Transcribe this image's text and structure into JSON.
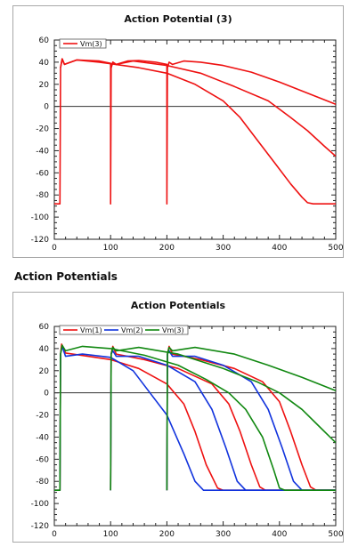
{
  "section_heading": "Action Potentials",
  "chart_data": [
    {
      "type": "line",
      "title": "Action Potential (3)",
      "xlabel": "",
      "ylabel": "",
      "xlim": [
        0,
        500
      ],
      "ylim": [
        -120,
        60
      ],
      "xticks": [
        0,
        100,
        200,
        300,
        400,
        500
      ],
      "yticks": [
        60,
        40,
        20,
        0,
        -20,
        -40,
        -60,
        -80,
        -100,
        -120
      ],
      "zero_line": true,
      "legend_position": "top-left",
      "series": [
        {
          "name": "Vm(3)",
          "color": "#ee1111",
          "points": [
            [
              0,
              -88
            ],
            [
              10,
              -88
            ],
            [
              11,
              35
            ],
            [
              14,
              43
            ],
            [
              18,
              38
            ],
            [
              40,
              42
            ],
            [
              80,
              41
            ],
            [
              100,
              39
            ],
            [
              100,
              -88
            ],
            [
              100,
              -88
            ],
            [
              101,
              35
            ],
            [
              104,
              40
            ],
            [
              110,
              38
            ],
            [
              130,
              41
            ],
            [
              150,
              41.5
            ],
            [
              180,
              40
            ],
            [
              200,
              38
            ],
            [
              200,
              -88
            ],
            [
              200,
              -88
            ],
            [
              201,
              35
            ],
            [
              204,
              40
            ],
            [
              210,
              38
            ],
            [
              230,
              41
            ],
            [
              260,
              40
            ],
            [
              300,
              37
            ],
            [
              350,
              31
            ],
            [
              400,
              22
            ],
            [
              450,
              12
            ],
            [
              480,
              6
            ],
            [
              500,
              2
            ]
          ]
        },
        {
          "name": "",
          "color": "#ee1111",
          "points": [
            [
              11,
              35
            ],
            [
              14,
              43
            ],
            [
              18,
              38
            ],
            [
              40,
              42
            ],
            [
              80,
              40
            ],
            [
              150,
              35
            ],
            [
              200,
              30
            ],
            [
              250,
              20
            ],
            [
              300,
              5
            ],
            [
              330,
              -10
            ],
            [
              360,
              -30
            ],
            [
              390,
              -50
            ],
            [
              420,
              -70
            ],
            [
              440,
              -82
            ],
            [
              450,
              -87
            ],
            [
              460,
              -88
            ],
            [
              500,
              -88
            ]
          ]
        },
        {
          "name": "",
          "color": "#ee1111",
          "points": [
            [
              101,
              35
            ],
            [
              104,
              40
            ],
            [
              110,
              38
            ],
            [
              140,
              41
            ],
            [
              200,
              37
            ],
            [
              260,
              30
            ],
            [
              320,
              18
            ],
            [
              380,
              5
            ],
            [
              420,
              -10
            ],
            [
              450,
              -22
            ],
            [
              480,
              -36
            ],
            [
              500,
              -45
            ]
          ]
        }
      ]
    },
    {
      "type": "line",
      "title": "Action Potentials",
      "xlabel": "",
      "ylabel": "",
      "xlim": [
        0,
        500
      ],
      "ylim": [
        -120,
        60
      ],
      "xticks": [
        0,
        100,
        200,
        300,
        400,
        500
      ],
      "yticks": [
        60,
        40,
        20,
        0,
        -20,
        -40,
        -60,
        -80,
        -100,
        -120
      ],
      "zero_line": true,
      "legend_position": "top-left",
      "legend": [
        "Vm(1)",
        "Vm(2)",
        "Vm(3)"
      ],
      "series": [
        {
          "name": "Vm(1)",
          "color": "#ee1111",
          "points": [
            [
              0,
              -88
            ],
            [
              10,
              -88
            ],
            [
              11,
              35
            ],
            [
              13,
              44
            ],
            [
              20,
              36
            ],
            [
              60,
              33
            ],
            [
              100,
              30
            ],
            [
              150,
              22
            ],
            [
              200,
              8
            ],
            [
              230,
              -10
            ],
            [
              250,
              -35
            ],
            [
              270,
              -65
            ],
            [
              290,
              -86
            ],
            [
              300,
              -88
            ],
            [
              500,
              -88
            ]
          ]
        },
        {
          "name": "",
          "color": "#ee1111",
          "points": [
            [
              100,
              -88
            ],
            [
              101,
              35
            ],
            [
              104,
              42
            ],
            [
              110,
              35
            ],
            [
              160,
              30
            ],
            [
              220,
              22
            ],
            [
              280,
              8
            ],
            [
              310,
              -10
            ],
            [
              330,
              -35
            ],
            [
              350,
              -65
            ],
            [
              365,
              -85
            ],
            [
              375,
              -88
            ],
            [
              500,
              -88
            ]
          ]
        },
        {
          "name": "",
          "color": "#ee1111",
          "points": [
            [
              200,
              -88
            ],
            [
              201,
              35
            ],
            [
              204,
              42
            ],
            [
              210,
              35
            ],
            [
              260,
              30
            ],
            [
              320,
              22
            ],
            [
              370,
              10
            ],
            [
              400,
              -8
            ],
            [
              420,
              -35
            ],
            [
              440,
              -65
            ],
            [
              455,
              -85
            ],
            [
              465,
              -88
            ],
            [
              500,
              -88
            ]
          ]
        },
        {
          "name": "Vm(2)",
          "color": "#1133dd",
          "points": [
            [
              0,
              -88
            ],
            [
              10,
              -88
            ],
            [
              11,
              35
            ],
            [
              14,
              42
            ],
            [
              20,
              33
            ],
            [
              50,
              35
            ],
            [
              100,
              32
            ],
            [
              140,
              20
            ],
            [
              170,
              0
            ],
            [
              200,
              -20
            ],
            [
              230,
              -55
            ],
            [
              250,
              -80
            ],
            [
              265,
              -88
            ],
            [
              500,
              -88
            ]
          ]
        },
        {
          "name": "",
          "color": "#1133dd",
          "points": [
            [
              100,
              -88
            ],
            [
              101,
              35
            ],
            [
              104,
              38
            ],
            [
              110,
              33
            ],
            [
              150,
              33
            ],
            [
              200,
              25
            ],
            [
              250,
              10
            ],
            [
              280,
              -15
            ],
            [
              305,
              -50
            ],
            [
              325,
              -80
            ],
            [
              340,
              -88
            ],
            [
              500,
              -88
            ]
          ]
        },
        {
          "name": "",
          "color": "#1133dd",
          "points": [
            [
              200,
              -88
            ],
            [
              201,
              35
            ],
            [
              204,
              38
            ],
            [
              210,
              33
            ],
            [
              250,
              33
            ],
            [
              300,
              25
            ],
            [
              350,
              10
            ],
            [
              380,
              -15
            ],
            [
              405,
              -50
            ],
            [
              425,
              -80
            ],
            [
              440,
              -88
            ],
            [
              500,
              -88
            ]
          ]
        },
        {
          "name": "Vm(3)",
          "color": "#118811",
          "points": [
            [
              0,
              -88
            ],
            [
              10,
              -88
            ],
            [
              11,
              35
            ],
            [
              14,
              43
            ],
            [
              20,
              38
            ],
            [
              50,
              42
            ],
            [
              100,
              40
            ],
            [
              160,
              34
            ],
            [
              220,
              25
            ],
            [
              270,
              12
            ],
            [
              310,
              0
            ],
            [
              340,
              -15
            ],
            [
              370,
              -40
            ],
            [
              390,
              -70
            ],
            [
              400,
              -86
            ],
            [
              410,
              -88
            ],
            [
              500,
              -88
            ]
          ]
        },
        {
          "name": "",
          "color": "#118811",
          "points": [
            [
              100,
              -88
            ],
            [
              101,
              35
            ],
            [
              104,
              41
            ],
            [
              110,
              38
            ],
            [
              150,
              41
            ],
            [
              220,
              35
            ],
            [
              300,
              22
            ],
            [
              360,
              10
            ],
            [
              400,
              0
            ],
            [
              440,
              -15
            ],
            [
              470,
              -30
            ],
            [
              500,
              -45
            ]
          ]
        },
        {
          "name": "",
          "color": "#118811",
          "points": [
            [
              200,
              -88
            ],
            [
              201,
              35
            ],
            [
              204,
              41
            ],
            [
              210,
              38
            ],
            [
              250,
              41
            ],
            [
              320,
              35
            ],
            [
              380,
              25
            ],
            [
              440,
              14
            ],
            [
              480,
              6
            ],
            [
              500,
              2
            ]
          ]
        }
      ]
    }
  ]
}
